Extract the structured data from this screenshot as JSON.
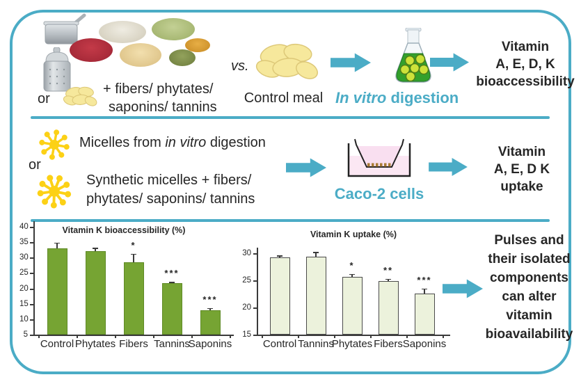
{
  "colors": {
    "accent_teal": "#4BACC6",
    "bar_left_green": "#76A433",
    "bar_right_pale": "#ECF2DC",
    "micelle_yellow": "#FCD116",
    "text_dark": "#262626"
  },
  "top_row": {
    "or_label": "or",
    "additives_lines": [
      "+ fibers/ phytates/",
      "saponins/ tannins"
    ],
    "vs_label": "vs.",
    "control_meal_label": "Control meal",
    "digestion_italic": "In vitro",
    "digestion_rest": " digestion",
    "outcome_lines": [
      "Vitamin",
      "A, E, D, K",
      "bioaccessibility"
    ]
  },
  "middle_row": {
    "micelles_prefix": "Micelles from ",
    "micelles_italic": "in vitro",
    "micelles_suffix": " digestion",
    "or_label": "or",
    "synthetic_lines": [
      "Synthetic micelles + fibers/",
      "phytates/ saponins/ tannins"
    ],
    "cells_label": "Caco-2 cells",
    "outcome_lines": [
      "Vitamin",
      "A, E, D K",
      "uptake"
    ]
  },
  "bottom_row": {
    "conclusion_lines": [
      "Pulses and",
      "their isolated",
      "components",
      "can alter",
      "vitamin",
      "bioavailability"
    ]
  },
  "chart_data": [
    {
      "type": "bar",
      "title": "Vitamin K bioaccessibility (%)",
      "categories": [
        "Control",
        "Phytates",
        "Fibers",
        "Tannins",
        "Saponins"
      ],
      "values": [
        32.9,
        32.2,
        28.4,
        21.6,
        12.9
      ],
      "errors": [
        2.0,
        1.0,
        2.8,
        0.5,
        0.7
      ],
      "significance": [
        "",
        "",
        "*",
        "***",
        "***"
      ],
      "xlabel": "",
      "ylabel": "",
      "ylim": [
        5,
        40
      ],
      "yticks": [
        5,
        10,
        15,
        20,
        25,
        30,
        35,
        40
      ],
      "grid": false,
      "legend": false,
      "bar_style": "solid"
    },
    {
      "type": "bar",
      "title": "Vitamin K uptake (%)",
      "categories": [
        "Control",
        "Tannins",
        "Phytates",
        "Fibers",
        "Saponins"
      ],
      "values": [
        29.2,
        29.4,
        25.7,
        24.9,
        22.6
      ],
      "errors": [
        0.4,
        0.8,
        0.5,
        0.4,
        0.9
      ],
      "significance": [
        "",
        "",
        "*",
        "**",
        "***"
      ],
      "xlabel": "",
      "ylabel": "",
      "ylim": [
        15,
        30
      ],
      "yticks": [
        15,
        20,
        25,
        30
      ],
      "grid": false,
      "legend": false,
      "bar_style": "pale"
    }
  ]
}
